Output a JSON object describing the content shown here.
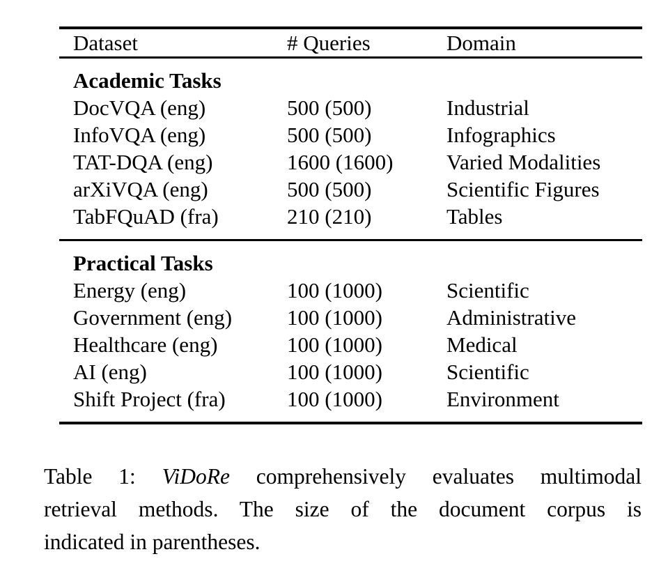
{
  "table": {
    "headers": [
      "Dataset",
      "# Queries",
      "Domain"
    ],
    "sections": [
      {
        "title": "Academic Tasks",
        "rows": [
          [
            "DocVQA (eng)",
            "500 (500)",
            "Industrial"
          ],
          [
            "InfoVQA (eng)",
            "500 (500)",
            "Infographics"
          ],
          [
            "TAT-DQA (eng)",
            "1600 (1600)",
            "Varied Modalities"
          ],
          [
            "arXiVQA (eng)",
            "500 (500)",
            "Scientific Figures"
          ],
          [
            "TabFQuAD (fra)",
            "210 (210)",
            "Tables"
          ]
        ]
      },
      {
        "title": "Practical Tasks",
        "rows": [
          [
            "Energy (eng)",
            "100 (1000)",
            "Scientific"
          ],
          [
            "Government (eng)",
            "100 (1000)",
            "Administrative"
          ],
          [
            "Healthcare (eng)",
            "100 (1000)",
            "Medical"
          ],
          [
            "AI (eng)",
            "100 (1000)",
            "Scientific"
          ],
          [
            "Shift Project (fra)",
            "100 (1000)",
            "Environment"
          ]
        ]
      }
    ]
  },
  "caption": {
    "line1_prefix": "Table 1: ",
    "line1_italic": "ViDoRe",
    "line1_rest": " comprehensively evaluates multimodal",
    "line2": "retrieval methods. The size of the document corpus is",
    "line3": "indicated in parentheses."
  },
  "colors": {
    "text": "#000000",
    "background": "#ffffff",
    "rule": "#000000"
  }
}
